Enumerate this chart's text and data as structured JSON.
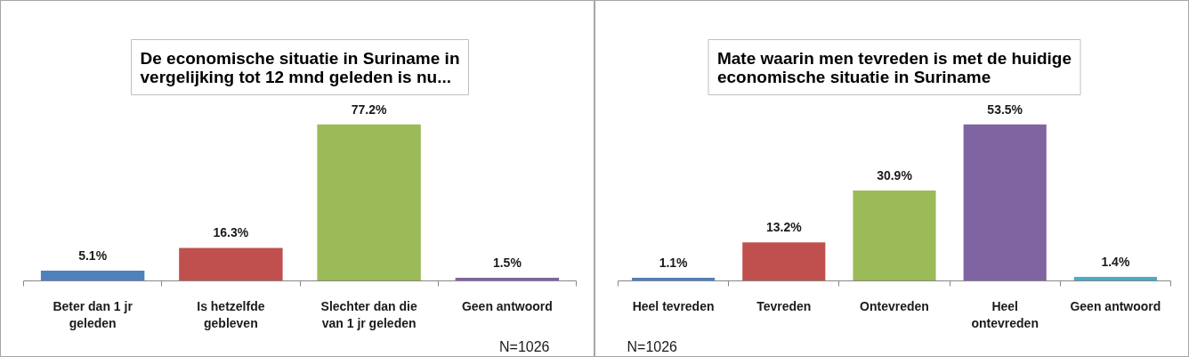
{
  "chart_data": [
    {
      "type": "bar",
      "title": "De economische situatie in Suriname in vergelijking tot 12 mnd geleden is nu...",
      "categories": [
        "Beter dan 1 jr geleden",
        "Is hetzelfde gebleven",
        "Slechter dan die van 1 jr geleden",
        "Geen antwoord"
      ],
      "values": [
        5.1,
        16.3,
        77.2,
        1.5
      ],
      "colors": [
        "#4f81bd",
        "#c0504d",
        "#9bbb59",
        "#8064a2"
      ],
      "value_labels": [
        "5.1%",
        "16.3%",
        "77.2%",
        "1.5%"
      ],
      "tick_labels": "x",
      "annotations": [
        "N=1026"
      ]
    },
    {
      "type": "bar",
      "title": "Mate waarin men tevreden is met de huidige economische situatie in Suriname",
      "categories": [
        "Heel tevreden",
        "Tevreden",
        "Ontevreden",
        "Heel ontevreden",
        "Geen antwoord"
      ],
      "values": [
        1.1,
        13.2,
        30.9,
        53.5,
        1.4
      ],
      "colors": [
        "#4f81bd",
        "#c0504d",
        "#9bbb59",
        "#8064a2",
        "#4bacc6"
      ],
      "value_labels": [
        "1.1%",
        "13.2%",
        "30.9%",
        "53.5%",
        "1.4%"
      ],
      "tick_labels": "x",
      "annotations": [
        "N=1026"
      ]
    }
  ]
}
